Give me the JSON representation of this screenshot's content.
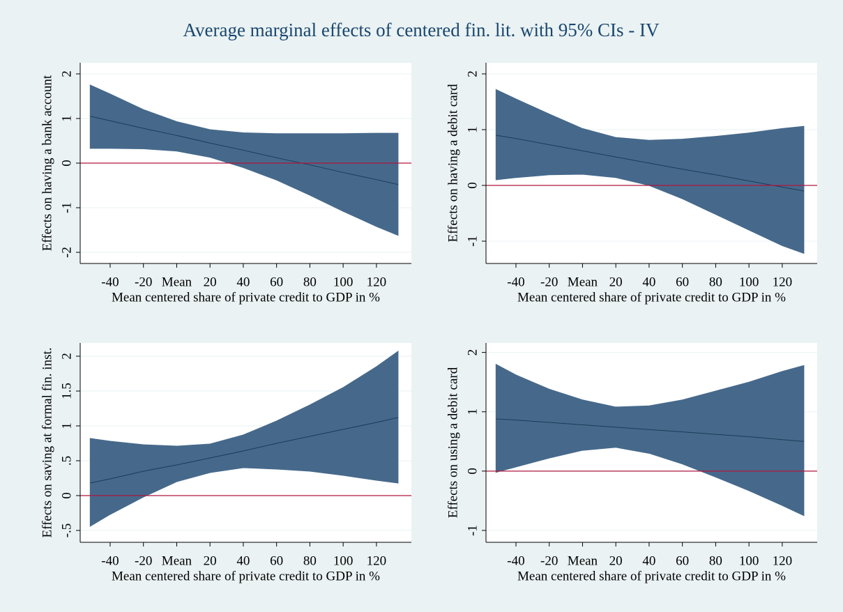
{
  "title": "Average marginal effects of centered fin. lit. with 95% CIs - IV",
  "chart_data": [
    {
      "type": "band",
      "ylabel": "Effects on having a bank account",
      "xlabel": "Mean centered share of private credit to GDP in %",
      "x": [
        -52,
        -40,
        -20,
        0,
        20,
        40,
        60,
        80,
        100,
        120,
        133
      ],
      "values": [
        1.05,
        0.95,
        0.78,
        0.62,
        0.45,
        0.29,
        0.12,
        -0.04,
        -0.21,
        -0.37,
        -0.48
      ],
      "upper": [
        1.75,
        1.55,
        1.2,
        0.93,
        0.75,
        0.68,
        0.66,
        0.66,
        0.66,
        0.67,
        0.67
      ],
      "lower": [
        0.33,
        0.33,
        0.32,
        0.27,
        0.13,
        -0.1,
        -0.38,
        -0.72,
        -1.08,
        -1.42,
        -1.62
      ],
      "xlim": [
        -58,
        141
      ],
      "xticks": [
        -40,
        -20,
        {
          "value": 0,
          "label": "Mean"
        },
        20,
        40,
        60,
        80,
        100,
        120
      ],
      "ylim": [
        -2.25,
        2.25
      ],
      "yticks": [
        -2,
        -1,
        0,
        1,
        2
      ],
      "yline": 0,
      "grid": true,
      "color": "#46698b",
      "line_color": "#1c3a58",
      "yline_color": "#b0163e"
    },
    {
      "type": "band",
      "ylabel": "Effects on having a debit card",
      "xlabel": "Mean centered share of private credit to GDP in %",
      "x": [
        -52,
        -40,
        -20,
        0,
        20,
        40,
        60,
        80,
        100,
        120,
        133
      ],
      "values": [
        0.9,
        0.84,
        0.73,
        0.62,
        0.51,
        0.4,
        0.29,
        0.19,
        0.08,
        -0.03,
        -0.1
      ],
      "upper": [
        1.72,
        1.55,
        1.28,
        1.02,
        0.86,
        0.81,
        0.83,
        0.88,
        0.94,
        1.02,
        1.06
      ],
      "lower": [
        0.1,
        0.14,
        0.19,
        0.2,
        0.14,
        0.0,
        -0.24,
        -0.52,
        -0.8,
        -1.08,
        -1.22
      ],
      "xlim": [
        -58,
        141
      ],
      "xticks": [
        -40,
        -20,
        {
          "value": 0,
          "label": "Mean"
        },
        20,
        40,
        60,
        80,
        100,
        120
      ],
      "ylim": [
        -1.4,
        2.2
      ],
      "yticks": [
        -1,
        0,
        1,
        2
      ],
      "yline": 0,
      "grid": true,
      "color": "#46698b",
      "line_color": "#1c3a58",
      "yline_color": "#b0163e"
    },
    {
      "type": "band",
      "ylabel": "Effects on saving at formal fin. inst.",
      "xlabel": "Mean centered share of private credit to GDP in %",
      "x": [
        -52,
        -40,
        -20,
        0,
        20,
        40,
        60,
        80,
        100,
        120,
        133
      ],
      "values": [
        0.18,
        0.24,
        0.35,
        0.44,
        0.54,
        0.64,
        0.75,
        0.85,
        0.95,
        1.05,
        1.12
      ],
      "upper": [
        0.82,
        0.78,
        0.73,
        0.71,
        0.74,
        0.87,
        1.07,
        1.3,
        1.55,
        1.85,
        2.07
      ],
      "lower": [
        -0.44,
        -0.27,
        -0.02,
        0.2,
        0.33,
        0.4,
        0.38,
        0.35,
        0.29,
        0.22,
        0.18
      ],
      "xlim": [
        -58,
        141
      ],
      "xticks": [
        -40,
        -20,
        {
          "value": 0,
          "label": "Mean"
        },
        20,
        40,
        60,
        80,
        100,
        120
      ],
      "ylim": [
        -0.67,
        2.19
      ],
      "yticks": [
        {
          "value": -0.5,
          "label": "-.5"
        },
        0,
        {
          "value": 0.5,
          "label": ".5"
        },
        1,
        1.5,
        2
      ],
      "yline": 0,
      "grid": true,
      "color": "#46698b",
      "line_color": "#1c3a58",
      "yline_color": "#b0163e"
    },
    {
      "type": "band",
      "ylabel": "Effects on using a debit card",
      "xlabel": "Mean centered share of private credit to GDP in %",
      "x": [
        -52,
        -40,
        -20,
        0,
        20,
        40,
        60,
        80,
        100,
        120,
        133
      ],
      "values": [
        0.88,
        0.86,
        0.82,
        0.78,
        0.74,
        0.7,
        0.66,
        0.62,
        0.58,
        0.53,
        0.5
      ],
      "upper": [
        1.8,
        1.62,
        1.38,
        1.2,
        1.08,
        1.1,
        1.2,
        1.35,
        1.5,
        1.68,
        1.78
      ],
      "lower": [
        -0.02,
        0.07,
        0.22,
        0.35,
        0.4,
        0.3,
        0.12,
        -0.1,
        -0.33,
        -0.58,
        -0.75
      ],
      "xlim": [
        -58,
        141
      ],
      "xticks": [
        -40,
        -20,
        {
          "value": 0,
          "label": "Mean"
        },
        20,
        40,
        60,
        80,
        100,
        120
      ],
      "ylim": [
        -1.2,
        2.16
      ],
      "yticks": [
        -1,
        0,
        1,
        2
      ],
      "yline": 0,
      "grid": true,
      "color": "#46698b",
      "line_color": "#1c3a58",
      "yline_color": "#b0163e"
    }
  ]
}
